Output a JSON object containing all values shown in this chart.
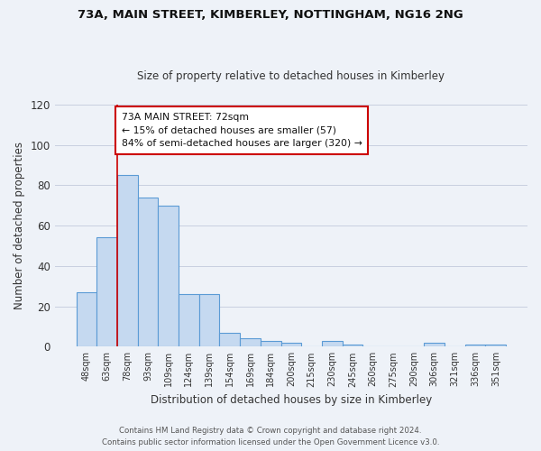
{
  "title1": "73A, MAIN STREET, KIMBERLEY, NOTTINGHAM, NG16 2NG",
  "title2": "Size of property relative to detached houses in Kimberley",
  "xlabel": "Distribution of detached houses by size in Kimberley",
  "ylabel": "Number of detached properties",
  "bar_labels": [
    "48sqm",
    "63sqm",
    "78sqm",
    "93sqm",
    "109sqm",
    "124sqm",
    "139sqm",
    "154sqm",
    "169sqm",
    "184sqm",
    "200sqm",
    "215sqm",
    "230sqm",
    "245sqm",
    "260sqm",
    "275sqm",
    "290sqm",
    "306sqm",
    "321sqm",
    "336sqm",
    "351sqm"
  ],
  "bar_values": [
    27,
    54,
    85,
    74,
    70,
    26,
    26,
    7,
    4,
    3,
    2,
    0,
    3,
    1,
    0,
    0,
    0,
    2,
    0,
    1,
    1
  ],
  "bar_color": "#c5d9f0",
  "bar_edge_color": "#5b9bd5",
  "ylim": [
    0,
    120
  ],
  "yticks": [
    0,
    20,
    40,
    60,
    80,
    100,
    120
  ],
  "vline_x": 1.5,
  "vline_color": "#cc0000",
  "annotation_line1": "73A MAIN STREET: 72sqm",
  "annotation_line2": "← 15% of detached houses are smaller (57)",
  "annotation_line3": "84% of semi-detached houses are larger (320) →",
  "footer1": "Contains HM Land Registry data © Crown copyright and database right 2024.",
  "footer2": "Contains public sector information licensed under the Open Government Licence v3.0.",
  "bg_color": "#eef2f8",
  "plot_bg_color": "#eef2f8",
  "grid_color": "#c8cfe0",
  "text_color": "#333333"
}
